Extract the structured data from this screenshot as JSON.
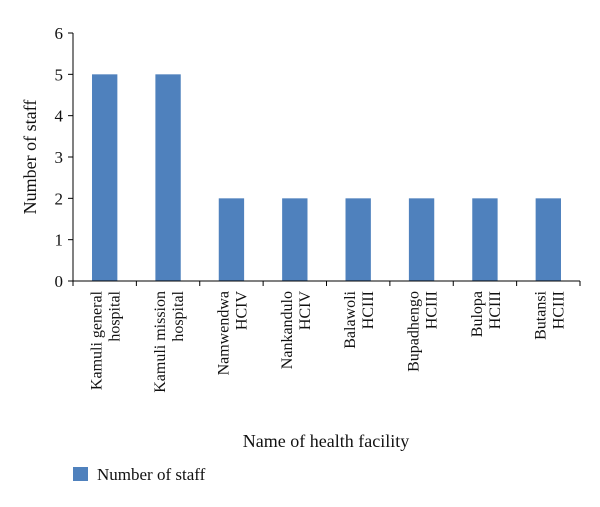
{
  "chart_data": {
    "type": "bar",
    "categories": [
      [
        "Kamuli general",
        "hospital"
      ],
      [
        "Kamuli mission",
        "hospital"
      ],
      [
        "Namwendwa",
        "HCIV"
      ],
      [
        "Nankandulo",
        "HCIV"
      ],
      [
        "Balawoli",
        "HCIII"
      ],
      [
        "Bupadhengo",
        "HCIII"
      ],
      [
        "Bulopa",
        "HCIII"
      ],
      [
        "Butansi",
        "HCIII"
      ]
    ],
    "series": [
      {
        "name": "Number of staff",
        "values": [
          5,
          5,
          2,
          2,
          2,
          2,
          2,
          2
        ]
      }
    ],
    "xlabel": "Name of health facility",
    "ylabel": "Number of staff",
    "ylim": [
      0,
      6
    ],
    "yticks": [
      "0",
      "1",
      "2",
      "3",
      "4",
      "5",
      "6"
    ],
    "grid": false,
    "legend_position": "bottom-left",
    "bar_color": "#4f81bd"
  }
}
